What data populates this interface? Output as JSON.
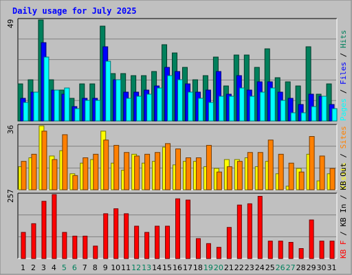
{
  "chart_data": [
    {
      "type": "bar",
      "title": "Daily usage for July 2025",
      "categories": [
        "1",
        "2",
        "3",
        "4",
        "5",
        "6",
        "7",
        "8",
        "9",
        "10",
        "11",
        "12",
        "13",
        "14",
        "15",
        "16",
        "17",
        "18",
        "19",
        "20",
        "21",
        "22",
        "23",
        "24",
        "25",
        "26",
        "27",
        "28",
        "29",
        "30",
        "31"
      ],
      "weekend_days": [
        "5",
        "6",
        "12",
        "13",
        "19",
        "20",
        "26",
        "27"
      ],
      "ymax": 49,
      "right_label": [
        "Pages",
        "Files",
        "Hits"
      ],
      "series": [
        {
          "name": "Hits",
          "color": "#00805c",
          "values": [
            18,
            20,
            49,
            20,
            15,
            11,
            18,
            18,
            46,
            23,
            23,
            22,
            22,
            24,
            37,
            33,
            26,
            20,
            22,
            31,
            17,
            32,
            32,
            26,
            35,
            21,
            19,
            17,
            36,
            13,
            18
          ]
        },
        {
          "name": "Files",
          "color": "#0000ff",
          "values": [
            11,
            14,
            38,
            15,
            13,
            7,
            11,
            11,
            36,
            20,
            14,
            14,
            15,
            17,
            26,
            24,
            18,
            14,
            15,
            24,
            13,
            22,
            15,
            19,
            19,
            14,
            11,
            8,
            13,
            12,
            8
          ]
        },
        {
          "name": "Pages",
          "color": "#00ffff",
          "values": [
            9,
            14,
            31,
            15,
            16,
            6,
            10,
            10,
            29,
            20,
            11,
            12,
            13,
            16,
            22,
            20,
            14,
            11,
            9,
            12,
            12,
            16,
            12,
            14,
            16,
            10,
            4,
            4,
            7,
            12,
            6
          ]
        }
      ]
    },
    {
      "type": "bar",
      "ymax": 36,
      "right_label": [
        "Visits",
        "Sites"
      ],
      "series": [
        {
          "name": "Visits",
          "color": "#ffff00",
          "values": [
            13,
            18,
            36,
            19,
            22,
            9,
            15,
            17,
            33,
            15,
            11,
            20,
            15,
            16,
            24,
            14,
            16,
            16,
            13,
            12,
            17,
            17,
            18,
            13,
            16,
            9,
            2,
            12,
            20,
            5,
            9
          ]
        },
        {
          "name": "Sites",
          "color": "#ff8000",
          "values": [
            16,
            20,
            33,
            17,
            31,
            8,
            18,
            20,
            28,
            25,
            21,
            19,
            20,
            21,
            26,
            23,
            18,
            18,
            25,
            10,
            13,
            16,
            21,
            21,
            28,
            20,
            15,
            10,
            30,
            19,
            12
          ]
        }
      ]
    },
    {
      "type": "bar",
      "ymax": 257,
      "right_label": [
        "KB F",
        "KB In",
        "KB Out"
      ],
      "series": [
        {
          "name": "KB F",
          "color": "#ff0000",
          "values": [
            105,
            140,
            230,
            257,
            105,
            90,
            90,
            50,
            180,
            200,
            180,
            130,
            105,
            130,
            130,
            240,
            235,
            80,
            60,
            45,
            125,
            215,
            220,
            250,
            70,
            70,
            65,
            40,
            155,
            70,
            70
          ]
        }
      ]
    }
  ]
}
